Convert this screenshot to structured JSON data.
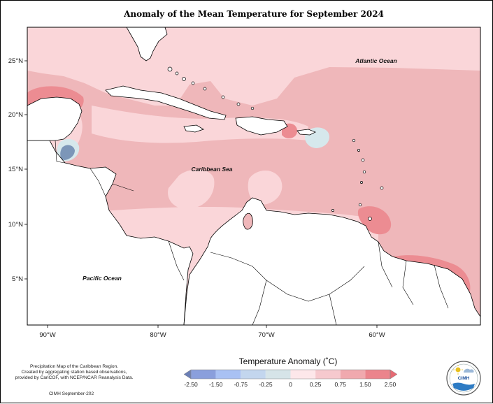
{
  "title": "Anomaly of the Mean Temperature for September 2024",
  "map": {
    "lon_ticks": [
      "90°W",
      "80°W",
      "70°W",
      "60°W"
    ],
    "lat_ticks": [
      "25°N",
      "20°N",
      "15°N",
      "10°N",
      "5°N"
    ],
    "labels": {
      "atlantic": "Atlantic Ocean",
      "caribbean": "Caribbean Sea",
      "pacific": "Pacific Ocean"
    }
  },
  "credits": {
    "line1": "Precipitation Map of the Caribbean Region.",
    "line2": "Created by aggregating station based observations,",
    "line3": "provided by CariCOF, with NCEP/NCAR Reanalysis Data.",
    "footer": "CIMH September-202"
  },
  "legend": {
    "title": "Temperature Anomaly (˚C)",
    "ticks": [
      "-2.50",
      "-1.50",
      "-0.75",
      "-0.25",
      "0",
      "0.25",
      "0.75",
      "1.50",
      "2.50"
    ],
    "colors": [
      "#6b7fb5",
      "#8a9fdc",
      "#a9c1f3",
      "#c3d6ee",
      "#d6e4e8",
      "#fde7ea",
      "#f6c9ce",
      "#f0a9ae",
      "#eb848c",
      "#e56a73"
    ]
  },
  "logo": {
    "text": "CIMH"
  },
  "palette": {
    "base": "#efb7ba",
    "light": "#fad6d9",
    "strong": "#ec8c92",
    "cool": "#7c96b8",
    "lightcool": "#d6e8ec"
  }
}
